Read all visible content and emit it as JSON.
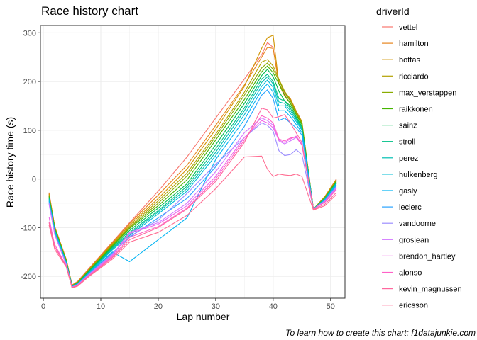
{
  "chart_data": {
    "type": "line",
    "title": "Race history chart",
    "xlabel": "Lap number",
    "ylabel": "Race history time (s)",
    "caption": "To learn how to create this chart: f1datajunkie.com",
    "legend_title": "driverId",
    "legend_position": "right",
    "grid": true,
    "xlim": [
      -0.5,
      52.5
    ],
    "ylim": [
      -245,
      315
    ],
    "xticks": [
      0,
      10,
      20,
      30,
      40,
      50
    ],
    "yticks": [
      -200,
      -100,
      0,
      100,
      200,
      300
    ],
    "x": [
      1,
      2,
      4,
      5,
      6,
      8,
      12,
      15,
      20,
      25,
      30,
      35,
      38,
      39,
      40,
      41,
      42,
      43,
      44,
      45,
      47,
      49,
      51
    ],
    "series": [
      {
        "name": "vettel",
        "color": "#F8766D",
        "values": [
          -28,
          -98,
          -165,
          -218,
          -210,
          -183,
          -130,
          -90,
          -25,
          45,
          125,
          205,
          255,
          280,
          270,
          195,
          175,
          160,
          135,
          115,
          -62,
          -36,
          0
        ]
      },
      {
        "name": "hamilton",
        "color": "#E7851E",
        "values": [
          -31,
          -98,
          -166,
          -218,
          -211,
          -184,
          -131,
          -92,
          -33,
          28,
          110,
          193,
          250,
          270,
          268,
          195,
          178,
          165,
          140,
          118,
          -62,
          -37,
          -2
        ]
      },
      {
        "name": "bottas",
        "color": "#D09400",
        "values": [
          -30,
          -99,
          -166,
          -219,
          -212,
          -185,
          -133,
          -95,
          -40,
          20,
          102,
          190,
          268,
          290,
          295,
          195,
          170,
          155,
          133,
          113,
          -62,
          -36,
          -1
        ]
      },
      {
        "name": "ricciardo",
        "color": "#B2A100",
        "values": [
          -33,
          -100,
          -167,
          -219,
          -212,
          -186,
          -135,
          -98,
          -45,
          12,
          92,
          178,
          240,
          245,
          232,
          205,
          180,
          163,
          138,
          117,
          -62,
          -38,
          -3
        ]
      },
      {
        "name": "max_verstappen",
        "color": "#89AC00",
        "values": [
          -35,
          -101,
          -168,
          -219,
          -213,
          -187,
          -136,
          -100,
          -50,
          6,
          87,
          172,
          228,
          238,
          225,
          202,
          178,
          160,
          136,
          115,
          -62,
          -38,
          -4
        ]
      },
      {
        "name": "raikkonen",
        "color": "#45B500",
        "values": [
          -36,
          -102,
          -169,
          -220,
          -213,
          -188,
          -138,
          -102,
          -55,
          -2,
          80,
          163,
          220,
          232,
          218,
          195,
          172,
          155,
          132,
          112,
          -62,
          -39,
          -5
        ]
      },
      {
        "name": "sainz",
        "color": "#00BC51",
        "values": [
          -38,
          -104,
          -170,
          -220,
          -214,
          -189,
          -140,
          -106,
          -60,
          -10,
          70,
          155,
          212,
          225,
          210,
          180,
          160,
          150,
          128,
          108,
          -62,
          -40,
          -7
        ]
      },
      {
        "name": "stroll",
        "color": "#00C087",
        "values": [
          -40,
          -105,
          -171,
          -220,
          -214,
          -190,
          -142,
          -110,
          -65,
          -15,
          62,
          146,
          205,
          215,
          200,
          165,
          160,
          145,
          125,
          105,
          -62,
          -40,
          -8
        ]
      },
      {
        "name": "perez",
        "color": "#00C0B2",
        "values": [
          -42,
          -106,
          -172,
          -221,
          -215,
          -191,
          -144,
          -113,
          -68,
          -20,
          55,
          140,
          198,
          210,
          195,
          158,
          155,
          140,
          122,
          102,
          -62,
          -41,
          -9
        ]
      },
      {
        "name": "hulkenberg",
        "color": "#00BCD6",
        "values": [
          -44,
          -108,
          -173,
          -221,
          -215,
          -192,
          -146,
          -116,
          -72,
          -25,
          48,
          132,
          190,
          203,
          188,
          150,
          150,
          135,
          118,
          100,
          -62,
          -42,
          -10
        ]
      },
      {
        "name": "gasly",
        "color": "#00B3F2",
        "values": [
          -46,
          -110,
          -174,
          -221,
          -216,
          -193,
          -150,
          -170,
          -125,
          -80,
          40,
          122,
          182,
          195,
          178,
          140,
          140,
          128,
          112,
          95,
          -62,
          -43,
          -12
        ]
      },
      {
        "name": "leclerc",
        "color": "#29A3FF",
        "values": [
          -48,
          -112,
          -175,
          -222,
          -216,
          -194,
          -152,
          -120,
          -80,
          -40,
          25,
          108,
          172,
          183,
          165,
          120,
          125,
          115,
          105,
          90,
          -62,
          -44,
          -14
        ]
      },
      {
        "name": "vandoorne",
        "color": "#9C8DFF",
        "values": [
          -50,
          -114,
          -176,
          -222,
          -217,
          -195,
          -154,
          -118,
          -85,
          -30,
          30,
          85,
          115,
          110,
          98,
          58,
          48,
          50,
          60,
          50,
          -62,
          -45,
          -16
        ]
      },
      {
        "name": "grosjean",
        "color": "#D277FF",
        "values": [
          -52,
          -115,
          -177,
          -222,
          -217,
          -196,
          -156,
          -110,
          -90,
          -50,
          15,
          95,
          125,
          120,
          110,
          78,
          72,
          78,
          85,
          70,
          -62,
          -46,
          -18
        ]
      },
      {
        "name": "brendon_hartley",
        "color": "#F166E8",
        "values": [
          -78,
          -140,
          -178,
          -223,
          -218,
          -197,
          -158,
          -112,
          -93,
          -55,
          5,
          85,
          120,
          115,
          105,
          80,
          75,
          82,
          88,
          72,
          -62,
          -47,
          -20
        ]
      },
      {
        "name": "alonso",
        "color": "#FF61C7",
        "values": [
          -88,
          -135,
          -179,
          -223,
          -218,
          -198,
          -160,
          -120,
          -98,
          -60,
          0,
          80,
          130,
          125,
          115,
          82,
          78,
          84,
          86,
          70,
          -62,
          -48,
          -22
        ]
      },
      {
        "name": "kevin_magnussen",
        "color": "#FF689E",
        "values": [
          -90,
          -140,
          -180,
          -223,
          -219,
          -199,
          -162,
          -125,
          -100,
          -62,
          -5,
          75,
          145,
          142,
          125,
          128,
          132,
          115,
          95,
          75,
          -63,
          -52,
          -28
        ]
      },
      {
        "name": "ericsson",
        "color": "#FF6C91",
        "values": [
          -95,
          -145,
          -181,
          -224,
          -220,
          -200,
          -165,
          -130,
          -110,
          -75,
          -20,
          45,
          47,
          20,
          5,
          10,
          8,
          7,
          10,
          5,
          -64,
          -55,
          -32
        ]
      }
    ]
  }
}
